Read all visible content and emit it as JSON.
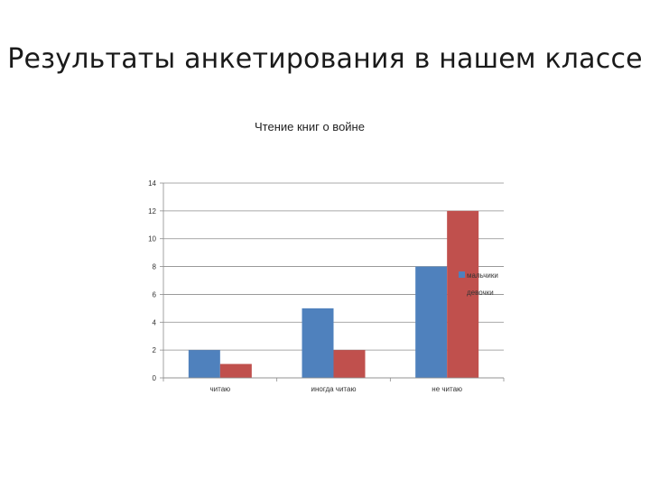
{
  "slide": {
    "title": "Результаты анкетирования в нашем классе"
  },
  "chart_data": {
    "type": "bar",
    "title": "Чтение книг о войне",
    "categories": [
      "читаю",
      "иногда читаю",
      "не читаю"
    ],
    "series": [
      {
        "name": "мальчики",
        "values": [
          2,
          5,
          8
        ],
        "color": "#4f81bd"
      },
      {
        "name": "девочки",
        "values": [
          1,
          2,
          12
        ],
        "color": "#c0504d"
      }
    ],
    "ylim": [
      0,
      14
    ],
    "yticks": [
      "0",
      "2",
      "4",
      "6",
      "8",
      "10",
      "12",
      "14"
    ],
    "grid": true,
    "legend": "right"
  }
}
